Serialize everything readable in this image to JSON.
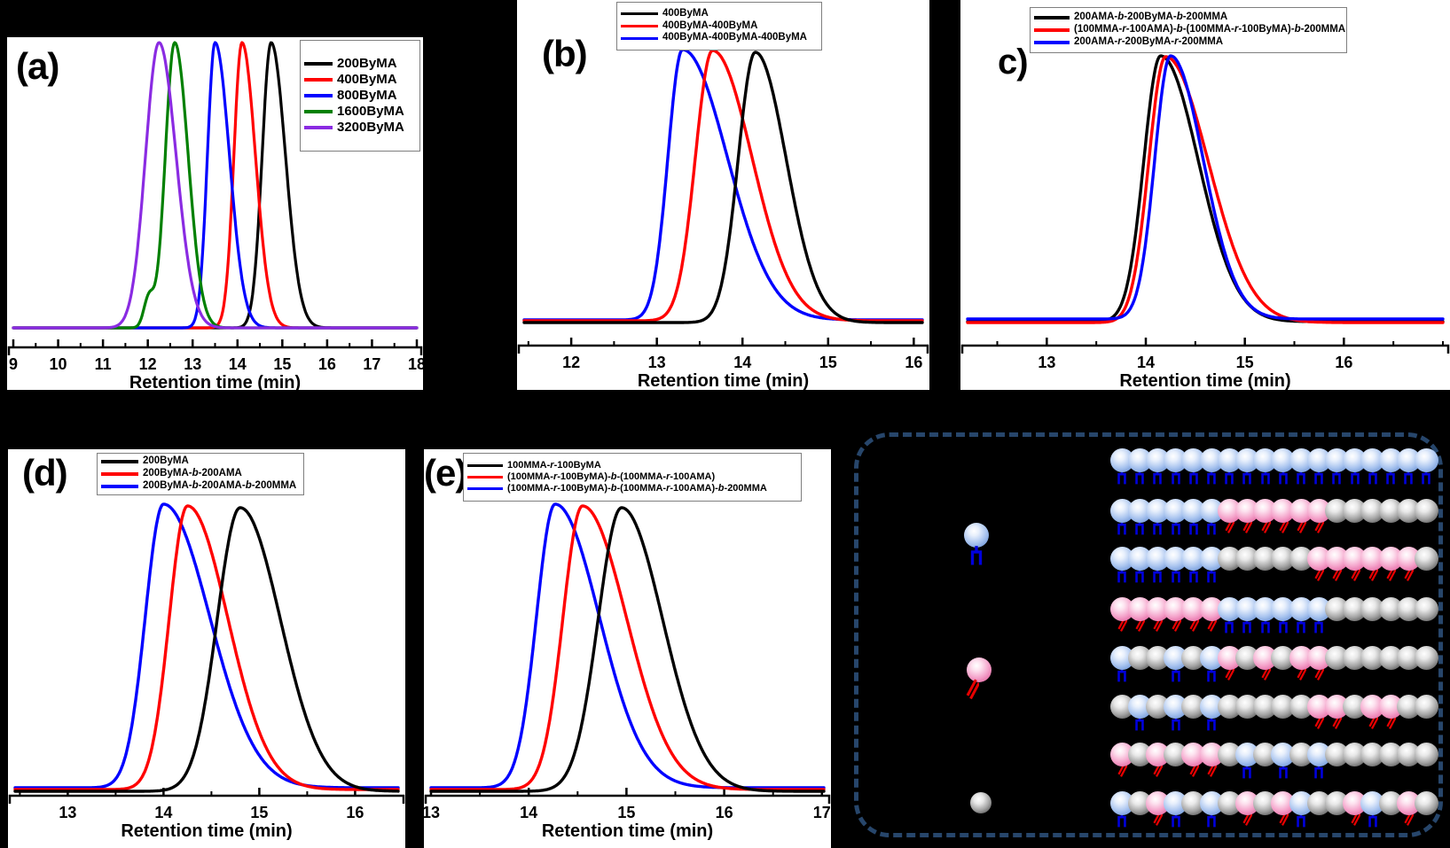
{
  "figure": {
    "background": "#000000"
  },
  "chart_data": [
    {
      "type": "line",
      "tag": "(a)",
      "xlabel": "Retention time (min)",
      "x_range": [
        9,
        18
      ],
      "x_ticks": [
        9,
        10,
        11,
        12,
        13,
        14,
        15,
        16,
        17,
        18
      ],
      "minor_tick_step": 0.5,
      "legend_position": "top-right",
      "grid": false,
      "draw_order": [
        0,
        1,
        2,
        3,
        4
      ],
      "series": [
        {
          "name": "200ByMA",
          "color": "#000000",
          "peak_retention_min": 14.75,
          "sigma_left": 0.2,
          "sigma_right": 0.32,
          "height": 1
        },
        {
          "name": "400ByMA",
          "color": "#ff0000",
          "peak_retention_min": 14.1,
          "sigma_left": 0.18,
          "sigma_right": 0.3,
          "height": 1
        },
        {
          "name": "800ByMA",
          "color": "#0000ff",
          "peak_retention_min": 13.5,
          "sigma_left": 0.17,
          "sigma_right": 0.32,
          "height": 1
        },
        {
          "name": "1600ByMA",
          "color": "#008000",
          "peak_retention_min": 12.6,
          "sigma_left": 0.21,
          "sigma_right": 0.3,
          "height": 1,
          "shoulder": {
            "peak_retention_min": 12.02,
            "sigma": 0.11,
            "height": 0.1
          }
        },
        {
          "name": "3200ByMA",
          "color": "#8a2be2",
          "peak_retention_min": 12.25,
          "sigma_left": 0.3,
          "sigma_right": 0.38,
          "height": 1
        }
      ]
    },
    {
      "type": "line",
      "tag": "(b)",
      "xlabel": "Retention time (min)",
      "x_range": [
        11.45,
        16.1
      ],
      "x_ticks": [
        12,
        13,
        14,
        15,
        16
      ],
      "minor_tick_step": 0.5,
      "legend_position": "top-center",
      "grid": false,
      "draw_order": [
        2,
        1,
        0
      ],
      "series": [
        {
          "name": "400ByMA",
          "color": "#000000",
          "peak_retention_min": 14.15,
          "sigma_left": 0.2,
          "sigma_right": 0.36,
          "height": 1,
          "base_off": 2
        },
        {
          "name": "400ByMA-400ByMA",
          "color": "#ff0000",
          "peak_retention_min": 13.65,
          "sigma_left": 0.2,
          "sigma_right": 0.46,
          "height": 1,
          "base_off": 0
        },
        {
          "name": "400ByMA-400ByMA-400ByMA",
          "color": "#0000ff",
          "peak_retention_min": 13.3,
          "sigma_left": 0.17,
          "sigma_right": 0.52,
          "height": 1,
          "base_off": -1
        }
      ]
    },
    {
      "type": "line",
      "tag": "c)",
      "xlabel": "Retention time (min)",
      "x_range": [
        12.2,
        17.0
      ],
      "x_ticks": [
        13,
        14,
        15,
        16
      ],
      "minor_tick_step": 0.5,
      "legend_position": "top-center",
      "grid": false,
      "draw_order": [
        0,
        1,
        2
      ],
      "series": [
        {
          "name": "200AMA-b-200ByMA-b-200MMA",
          "color": "#000000",
          "peak_retention_min": 14.15,
          "sigma_left": 0.17,
          "sigma_right": 0.38,
          "height": 1,
          "base_off": 1
        },
        {
          "name": "(100MMA-r-100AMA)-b-(100MMA-r-100ByMA)-b-200MMA",
          "color": "#ff0000",
          "peak_retention_min": 14.2,
          "sigma_left": 0.17,
          "sigma_right": 0.43,
          "height": 1,
          "base_off": 2
        },
        {
          "name": "200AMA-r-200ByMA-r-200MMA",
          "color": "#0000ff",
          "peak_retention_min": 14.25,
          "sigma_left": 0.16,
          "sigma_right": 0.33,
          "height": 0.99,
          "base_off": -2
        }
      ]
    },
    {
      "type": "line",
      "tag": "(d)",
      "xlabel": "Retention time (min)",
      "x_range": [
        12.45,
        16.45
      ],
      "x_ticks": [
        13,
        14,
        15,
        16
      ],
      "minor_tick_step": 0.5,
      "legend_position": "top-center",
      "grid": false,
      "draw_order": [
        2,
        1,
        0
      ],
      "series": [
        {
          "name": "200ByMA",
          "color": "#000000",
          "peak_retention_min": 14.8,
          "sigma_left": 0.24,
          "sigma_right": 0.42,
          "height": 1,
          "base_off": 3
        },
        {
          "name": "200ByMA-b-200AMA",
          "color": "#ff0000",
          "peak_retention_min": 14.25,
          "sigma_left": 0.19,
          "sigma_right": 0.42,
          "height": 1,
          "base_off": 1
        },
        {
          "name": "200ByMA-b-200AMA-b-200MMA",
          "color": "#0000ff",
          "peak_retention_min": 14.0,
          "sigma_left": 0.19,
          "sigma_right": 0.48,
          "height": 1,
          "base_off": -1
        }
      ]
    },
    {
      "type": "line",
      "tag": "(e)",
      "xlabel": "Retention time (min)",
      "x_range": [
        13,
        17.02
      ],
      "x_ticks": [
        13,
        14,
        15,
        16,
        17
      ],
      "minor_tick_step": 0.5,
      "legend_position": "top-center",
      "grid": false,
      "draw_order": [
        2,
        1,
        0
      ],
      "series": [
        {
          "name": "100MMA-r-100ByMA",
          "color": "#000000",
          "peak_retention_min": 14.95,
          "sigma_left": 0.24,
          "sigma_right": 0.42,
          "height": 1,
          "base_off": 3
        },
        {
          "name": "(100MMA-r-100ByMA)-b-(100MMA-r-100AMA)",
          "color": "#ff0000",
          "peak_retention_min": 14.55,
          "sigma_left": 0.2,
          "sigma_right": 0.45,
          "height": 1,
          "base_off": 1
        },
        {
          "name": "(100MMA-r-100ByMA)-b-(100MMA-r-100AMA)-b-200MMA",
          "color": "#0000ff",
          "peak_retention_min": 14.27,
          "sigma_left": 0.19,
          "sigma_right": 0.45,
          "height": 1,
          "base_off": -1
        }
      ]
    }
  ],
  "schematic": {
    "border_color": "#27466b",
    "bead_colors": {
      "B": "#8fb4e8",
      "P": "#f094c2",
      "G": "#c8c8c8"
    },
    "tail_colors": {
      "fork": "#0000dd",
      "double_bond": "#e80000"
    },
    "monomer_key": [
      {
        "icon": "blue-monomer-icon",
        "bead": "B",
        "tail": "fork"
      },
      {
        "icon": "pink-monomer-icon",
        "bead": "P",
        "tail": "double_bond"
      },
      {
        "icon": "gray-monomer-icon",
        "bead": "G",
        "tail": "none"
      }
    ],
    "chains": [
      "BBBBBBBBBBBBBBBBBB",
      "BBBBBBPPPPPPGGGGGG",
      "BBBBBBGGGGGPPPPPPG",
      "PPPPPPBBBBBBGGGGGG",
      "BGGBGBPGPGPPGGGGGG",
      "GBGBGBGGGGGPPGPPGG",
      "PGPGPPGBGBGBGGGGGG",
      "BGPBGBGPGPBGGPBGPG"
    ]
  }
}
